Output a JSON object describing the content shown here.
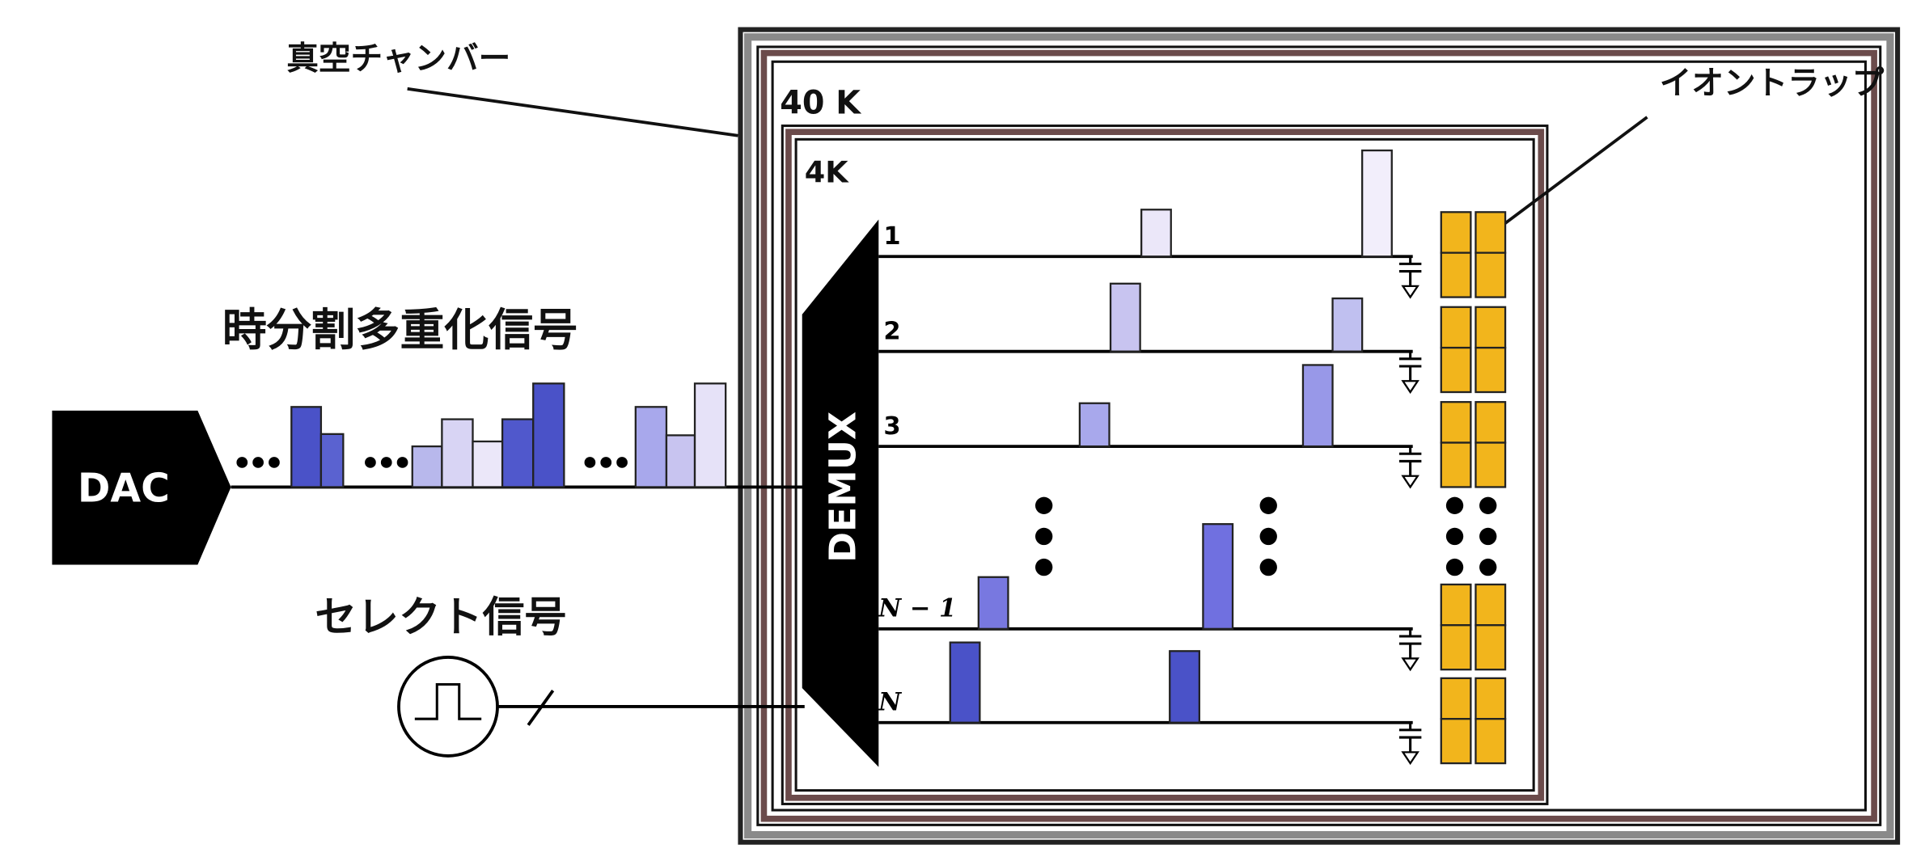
{
  "labels": {
    "vacuum_chamber": "真空チャンバー",
    "ion_trap": "イオントラップ",
    "stage_40k": "40 K",
    "stage_4k": "4K",
    "tdm_signal": "時分割多重化信号",
    "select_signal": "セレクト信号"
  },
  "nodes": {
    "dac": "DAC",
    "demux": "DEMUX"
  },
  "channels": [
    "1",
    "2",
    "3",
    "N − 1",
    "N"
  ]
}
